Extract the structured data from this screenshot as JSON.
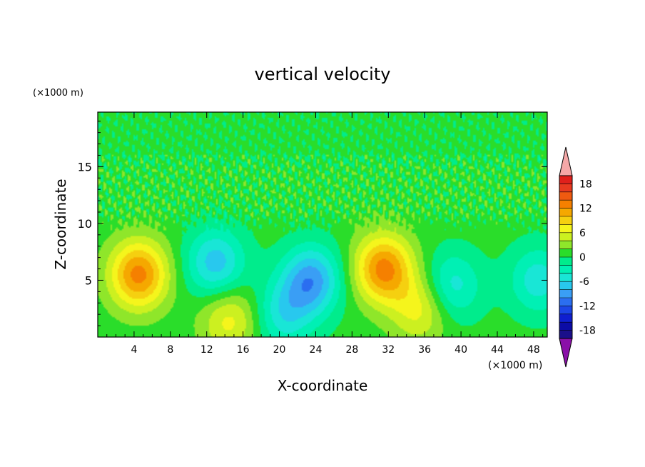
{
  "chart_data": {
    "type": "heatmap",
    "title": "vertical velocity",
    "xlabel": "X-coordinate",
    "ylabel": "Z-coordinate",
    "x_units": "(×1000 m)",
    "y_units": "(×1000 m)",
    "xlim": [
      0,
      49.5
    ],
    "ylim": [
      0,
      19.8
    ],
    "x_ticks": [
      4,
      8,
      12,
      16,
      20,
      24,
      28,
      32,
      36,
      40,
      44,
      48
    ],
    "y_ticks": [
      5,
      10,
      15
    ],
    "colorbar": {
      "levels": [
        -20,
        -18,
        -16,
        -14,
        -12,
        -10,
        -8,
        -6,
        -4,
        -2,
        0,
        2,
        4,
        6,
        8,
        10,
        12,
        14,
        16,
        18,
        20
      ],
      "labels": [
        18,
        12,
        6,
        0,
        -6,
        -12,
        -18
      ],
      "colors": [
        "#1a0f8a",
        "#0c0ca6",
        "#0f1fd0",
        "#1c46e6",
        "#2b6ef0",
        "#3a9ef5",
        "#28c8ee",
        "#19e6d6",
        "#00f0b4",
        "#00ec8c",
        "#2add2a",
        "#8fe62a",
        "#ccf020",
        "#f5f51c",
        "#f5d010",
        "#f5a800",
        "#f58000",
        "#f05a10",
        "#e83a20",
        "#e0201c"
      ],
      "over_color": "#f5a8a8",
      "under_color": "#8a10a8",
      "extend": "both"
    },
    "field_features": [
      {
        "x": 4.5,
        "z": 5.5,
        "w": 12,
        "note": "updraft core"
      },
      {
        "x": 31.5,
        "z": 6.0,
        "w": 12,
        "note": "updraft core"
      },
      {
        "x": 35.5,
        "z": 2.5,
        "w": 6
      },
      {
        "x": 14.5,
        "z": 1.5,
        "w": 6
      },
      {
        "x": 13.0,
        "z": 6.5,
        "w": -8,
        "note": "downdraft"
      },
      {
        "x": 23.5,
        "z": 5.0,
        "w": -10,
        "note": "downdraft"
      },
      {
        "x": 20.5,
        "z": 2.0,
        "w": -6
      },
      {
        "x": 39.0,
        "z": 4.5,
        "w": -6
      },
      {
        "x": 48.5,
        "z": 5.0,
        "w": -6
      }
    ]
  }
}
